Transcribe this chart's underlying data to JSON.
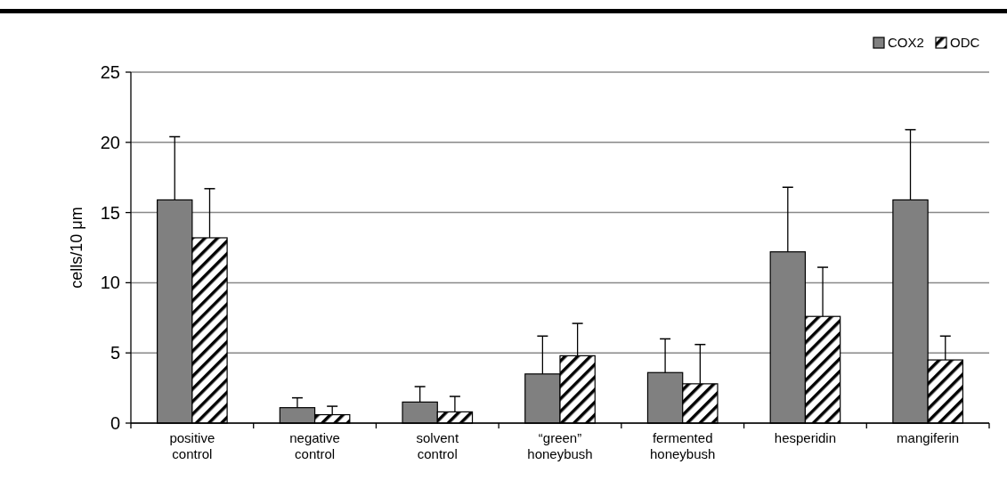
{
  "chart_data": {
    "type": "bar",
    "ylabel": "cells/10 μm",
    "categories": [
      "positive control",
      "negative control",
      "solvent control",
      "“green” honeybush",
      "fermented honeybush",
      "hesperidin",
      "mangiferin"
    ],
    "series": [
      {
        "name": "COX2",
        "color": "#808080",
        "values": [
          15.9,
          1.1,
          1.5,
          3.5,
          3.6,
          12.2,
          15.9
        ],
        "errors": [
          [
            15.9,
            20.4
          ],
          [
            1.1,
            1.8
          ],
          [
            1.5,
            2.6
          ],
          [
            3.5,
            6.2
          ],
          [
            3.6,
            6.0
          ],
          [
            12.2,
            16.8
          ],
          [
            15.9,
            20.9
          ]
        ]
      },
      {
        "name": "ODC",
        "color": "#000000",
        "values": [
          13.2,
          0.6,
          0.8,
          4.8,
          2.8,
          7.6,
          4.5
        ],
        "errors": [
          [
            13.2,
            16.7
          ],
          [
            0.6,
            1.2
          ],
          [
            0.8,
            1.9
          ],
          [
            4.8,
            7.1
          ],
          [
            2.8,
            5.6
          ],
          [
            7.6,
            11.1
          ],
          [
            4.5,
            6.2
          ]
        ]
      }
    ],
    "ylim": [
      0,
      25
    ],
    "yticks": [
      0,
      5,
      10,
      15,
      20,
      25
    ],
    "grid": "y",
    "legend": "top right"
  }
}
